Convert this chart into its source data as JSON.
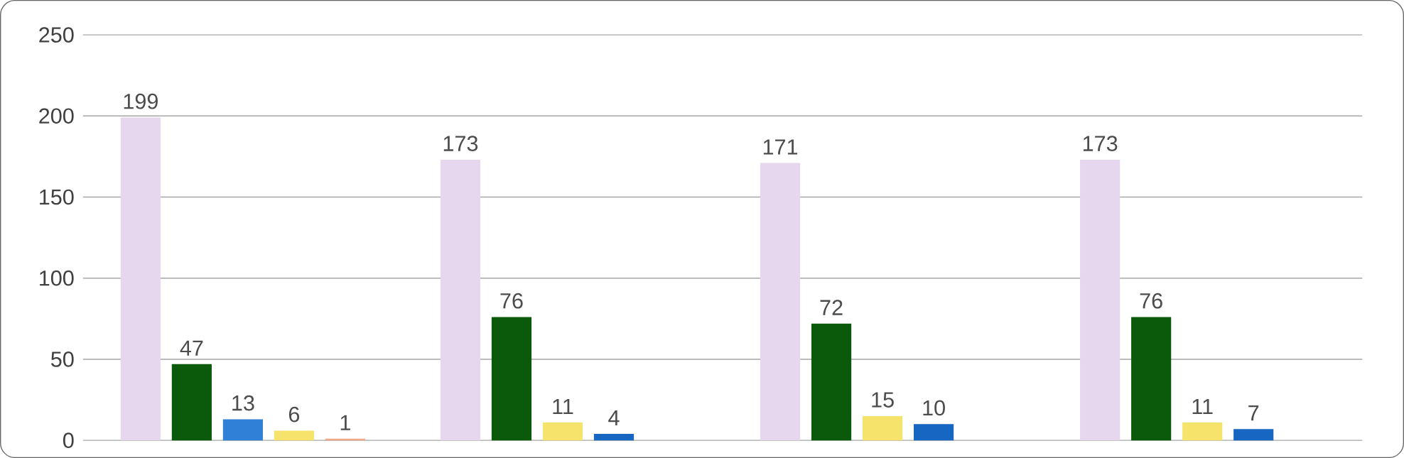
{
  "chart_data": {
    "type": "bar",
    "categories": [
      null,
      null,
      null,
      null
    ],
    "series": [
      {
        "color": "#e6d6ee",
        "values": [
          199,
          173,
          171,
          173
        ]
      },
      {
        "color": "#0b5a0b",
        "values": [
          47,
          76,
          72,
          76
        ]
      },
      {
        "colors": [
          "#2f80d6",
          "#f6e36c",
          "#f6e36c",
          "#f6e36c"
        ],
        "values": [
          13,
          11,
          15,
          11
        ]
      },
      {
        "colors": [
          "#f6e36c",
          "#1767c2",
          "#1767c2",
          "#1767c2"
        ],
        "values": [
          6,
          4,
          10,
          7
        ]
      },
      {
        "color": "#f4a88c",
        "values": [
          1,
          null,
          null,
          null
        ]
      }
    ],
    "ylim": [
      0,
      250
    ],
    "yticks": [
      0,
      50,
      100,
      150,
      200,
      250
    ],
    "grid": "y",
    "data_labels": true
  }
}
